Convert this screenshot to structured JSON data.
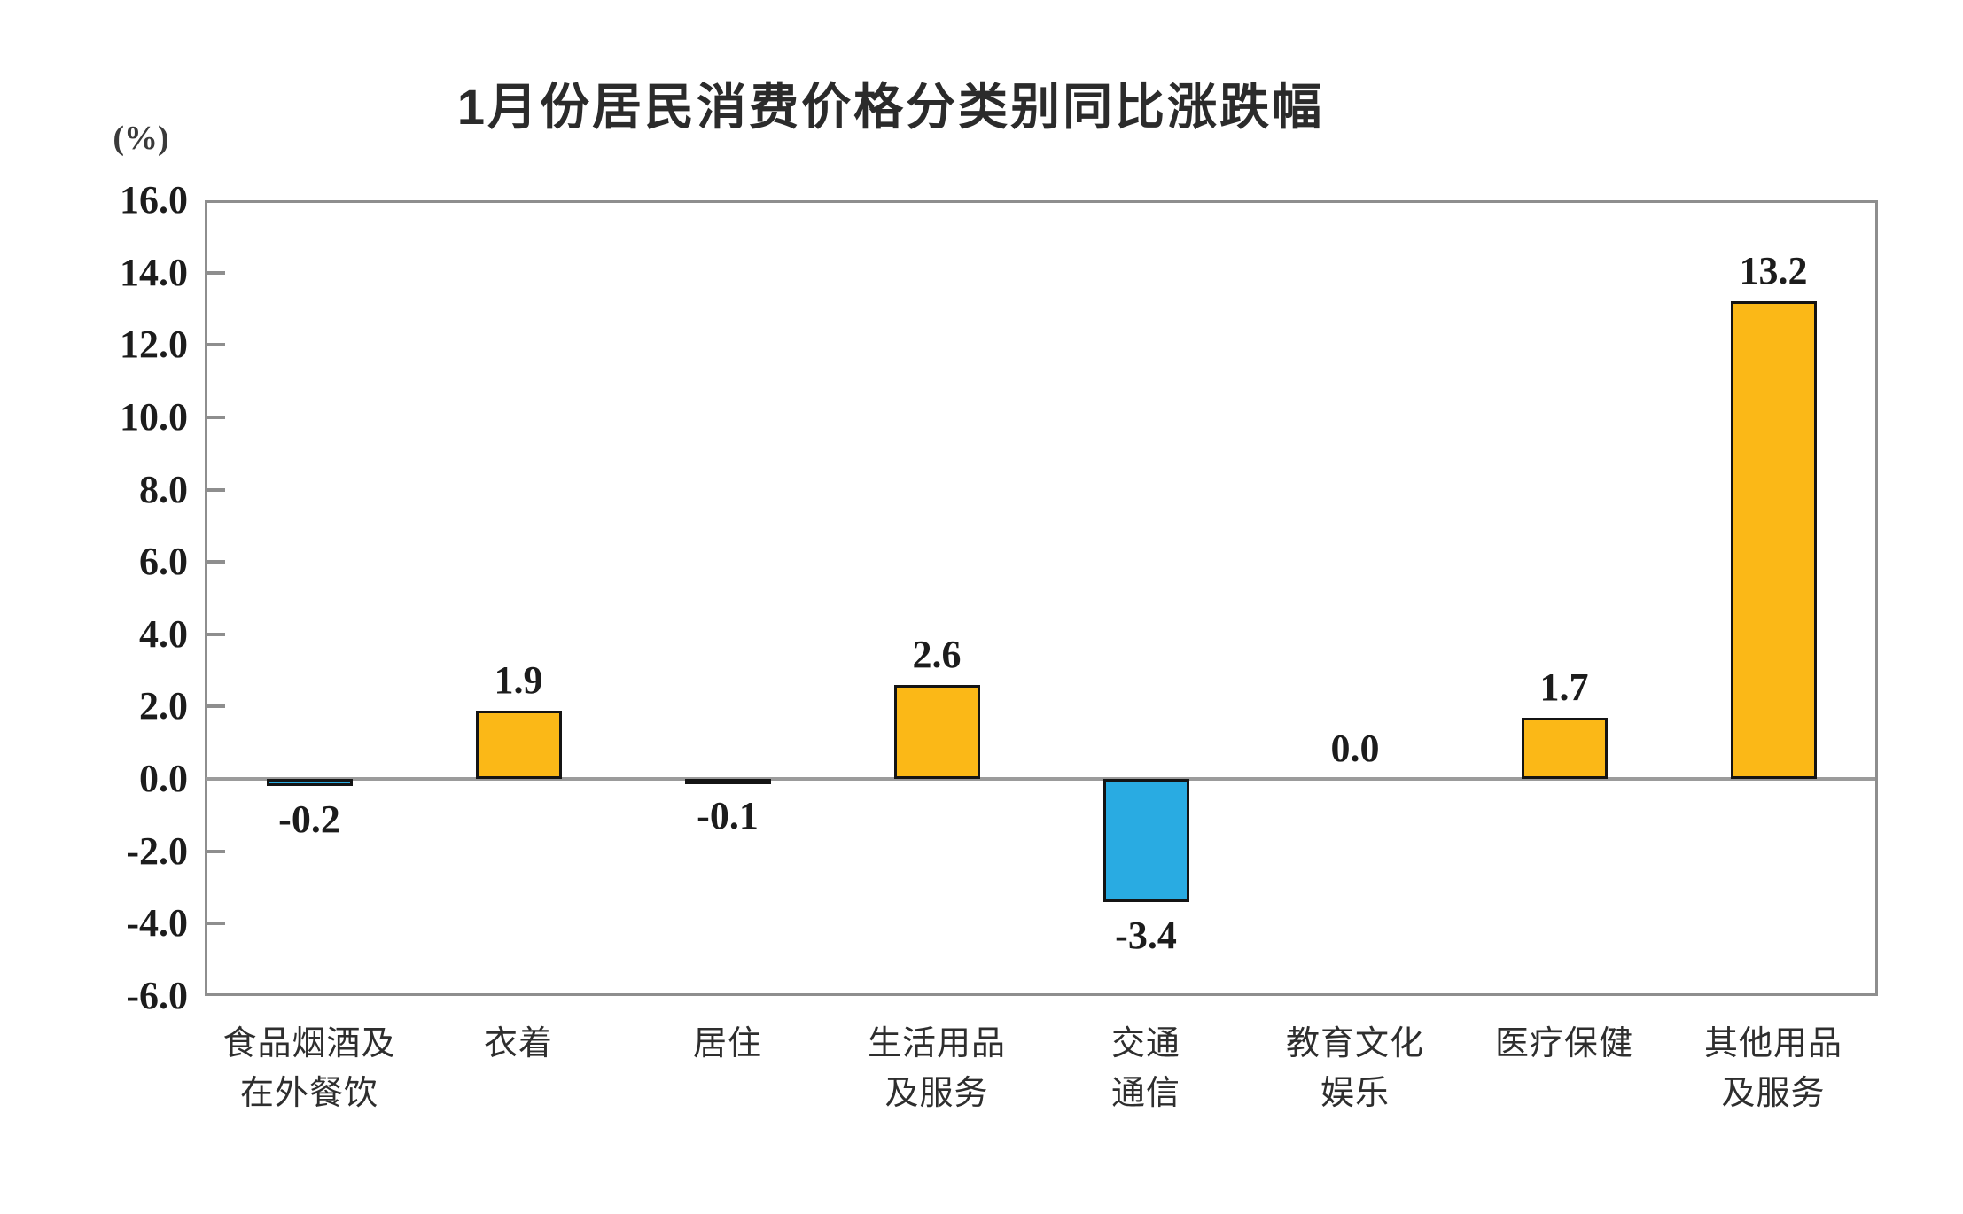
{
  "chart_data": {
    "type": "bar",
    "title": "1月份居民消费价格分类别同比涨跌幅",
    "unit_label": "(%)",
    "categories": [
      "食品烟酒及\n在外餐饮",
      "衣着",
      "居住",
      "生活用品\n及服务",
      "交通\n通信",
      "教育文化\n娱乐",
      "医疗保健",
      "其他用品\n及服务"
    ],
    "values": [
      -0.2,
      1.9,
      -0.1,
      2.6,
      -3.4,
      0.0,
      1.7,
      13.2
    ],
    "value_labels": [
      "-0.2",
      "1.9",
      "-0.1",
      "2.6",
      "-3.4",
      "0.0",
      "1.7",
      "13.2"
    ],
    "xlabel": "",
    "ylabel": "(%)",
    "ylim": [
      -6.0,
      16.0
    ],
    "ytick_step": 2.0,
    "yticks": [
      "16.0",
      "14.0",
      "12.0",
      "10.0",
      "8.0",
      "6.0",
      "4.0",
      "2.0",
      "0.0",
      "-2.0",
      "-4.0",
      "-6.0"
    ],
    "grid": "off",
    "legend": "none",
    "colors": {
      "positive_bar": "#FBB817",
      "negative_bar": "#29ABE2",
      "bar_border": "#141414",
      "axis_border": "#8E8E8E",
      "zero_line": "#9B9B9B",
      "text": "#1C1C1C"
    }
  }
}
